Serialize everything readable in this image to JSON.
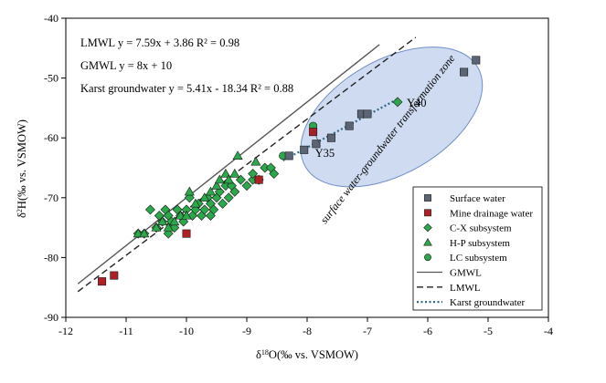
{
  "chart_data": {
    "type": "scatter",
    "xlabel_pre": "δ",
    "xlabel_sup": "18",
    "xlabel_post": "O(‰ vs. VSMOW)",
    "ylabel_pre": "δ",
    "ylabel_sup": "2",
    "ylabel_post": "H(‰ vs. VSMOW)",
    "xlim": [
      -12,
      -4
    ],
    "ylim": [
      -90,
      -40
    ],
    "xticks": [
      -12,
      -11,
      -10,
      -9,
      -8,
      -7,
      -6,
      -5,
      -4
    ],
    "yticks": [
      -90,
      -80,
      -70,
      -60,
      -50,
      -40
    ],
    "grid": false,
    "equations": [
      "LMWL y = 7.59x + 3.86  R² = 0.98",
      "GMWL y = 8x + 10",
      "Karst groundwater y = 5.41x - 18.34 R² = 0.88"
    ],
    "zone_label": "surface water-groundwater transformation zone",
    "point_labels": [
      {
        "text": "Y40",
        "x": -6.5,
        "y": -54
      },
      {
        "text": "Y35",
        "x": -7.9,
        "y": -58
      }
    ],
    "lines": [
      {
        "name": "GMWL",
        "slope": 8,
        "intercept": 10,
        "x_range": [
          -11.8,
          -6.8
        ],
        "style": "solid",
        "color": "#555555"
      },
      {
        "name": "LMWL",
        "slope": 7.59,
        "intercept": 3.86,
        "x_range": [
          -11.8,
          -6.2
        ],
        "style": "dashed",
        "color": "#222222"
      },
      {
        "name": "Karst groundwater",
        "slope": 5.41,
        "intercept": -18.34,
        "x_range": [
          -8.4,
          -6.5
        ],
        "style": "dotted",
        "color": "#2e6b86"
      }
    ],
    "ellipse": {
      "cx": -6.6,
      "cy": -56.5,
      "rx": 1.65,
      "ry": 9.5,
      "rotation": -30,
      "fill": "#c9d7ee",
      "stroke": "#6f8fc9"
    },
    "series": [
      {
        "name": "Surface water",
        "marker": "square",
        "color": "#5b6573",
        "points": [
          [
            -8.3,
            -63
          ],
          [
            -8.05,
            -62
          ],
          [
            -7.85,
            -61
          ],
          [
            -7.6,
            -60
          ],
          [
            -7.3,
            -58
          ],
          [
            -7.1,
            -56
          ],
          [
            -7.0,
            -56
          ],
          [
            -5.4,
            -49
          ],
          [
            -5.2,
            -47
          ]
        ]
      },
      {
        "name": "Mine drainage water",
        "marker": "square",
        "color": "#b01f24",
        "points": [
          [
            -11.4,
            -84
          ],
          [
            -11.2,
            -83
          ],
          [
            -10.0,
            -76
          ],
          [
            -8.8,
            -67
          ],
          [
            -7.9,
            -59
          ]
        ]
      },
      {
        "name": "C-X subsystem",
        "marker": "diamond",
        "color": "#2aa84a",
        "points": [
          [
            -10.8,
            -76
          ],
          [
            -10.7,
            -76
          ],
          [
            -10.6,
            -72
          ],
          [
            -10.5,
            -75
          ],
          [
            -10.4,
            -74
          ],
          [
            -10.35,
            -72
          ],
          [
            -10.3,
            -73
          ],
          [
            -10.25,
            -74
          ],
          [
            -10.2,
            -75
          ],
          [
            -10.15,
            -72
          ],
          [
            -10.1,
            -73
          ],
          [
            -10.05,
            -74
          ],
          [
            -10.0,
            -72
          ],
          [
            -9.95,
            -70
          ],
          [
            -9.9,
            -73
          ],
          [
            -9.85,
            -72
          ],
          [
            -9.8,
            -71
          ],
          [
            -9.75,
            -73
          ],
          [
            -9.7,
            -72
          ],
          [
            -9.65,
            -70
          ],
          [
            -9.6,
            -71
          ],
          [
            -9.55,
            -72
          ],
          [
            -9.5,
            -70
          ],
          [
            -9.45,
            -69
          ],
          [
            -9.4,
            -71
          ],
          [
            -9.35,
            -68
          ],
          [
            -9.3,
            -70
          ],
          [
            -9.25,
            -68
          ],
          [
            -9.2,
            -69
          ],
          [
            -9.1,
            -67
          ],
          [
            -9.0,
            -68
          ],
          [
            -8.9,
            -67
          ],
          [
            -8.8,
            -67
          ],
          [
            -8.7,
            -65
          ],
          [
            -8.6,
            -65
          ],
          [
            -8.55,
            -66
          ],
          [
            -8.9,
            -66
          ],
          [
            -9.6,
            -73
          ],
          [
            -10.3,
            -76
          ],
          [
            -10.45,
            -73
          ]
        ]
      },
      {
        "name": "H-P subsystem",
        "marker": "triangle",
        "color": "#2aa84a",
        "points": [
          [
            -10.8,
            -76
          ],
          [
            -10.7,
            -76
          ],
          [
            -10.5,
            -75
          ],
          [
            -10.4,
            -74
          ],
          [
            -10.3,
            -75
          ],
          [
            -10.2,
            -74
          ],
          [
            -10.1,
            -73
          ],
          [
            -10.0,
            -73
          ],
          [
            -9.95,
            -69
          ],
          [
            -9.85,
            -71
          ],
          [
            -9.7,
            -70
          ],
          [
            -9.6,
            -69
          ],
          [
            -9.5,
            -68
          ],
          [
            -9.45,
            -67
          ],
          [
            -9.35,
            -66
          ],
          [
            -9.3,
            -67
          ],
          [
            -9.2,
            -66
          ],
          [
            -9.15,
            -63
          ],
          [
            -8.85,
            -64
          ]
        ]
      },
      {
        "name": "LC subsystem",
        "marker": "circle",
        "color": "#2aa84a",
        "points": [
          [
            -7.9,
            -58
          ],
          [
            -8.4,
            -63
          ]
        ]
      }
    ],
    "extra_points": [
      {
        "marker": "diamond",
        "color": "#2aa84a",
        "x": -6.5,
        "y": -54
      }
    ],
    "legend": {
      "placement": "bottom-right",
      "entries": [
        {
          "label": "Surface water",
          "kind": "square",
          "color": "#5b6573"
        },
        {
          "label": "Mine drainage water",
          "kind": "square",
          "color": "#b01f24"
        },
        {
          "label": "C-X subsystem",
          "kind": "diamond",
          "color": "#2aa84a"
        },
        {
          "label": "H-P subsystem",
          "kind": "triangle",
          "color": "#2aa84a"
        },
        {
          "label": "LC subsystem",
          "kind": "circle",
          "color": "#2aa84a"
        },
        {
          "label": "GMWL",
          "kind": "solid",
          "color": "#555555"
        },
        {
          "label": "LMWL",
          "kind": "dashed",
          "color": "#222222"
        },
        {
          "label": "Karst groundwater",
          "kind": "dotted",
          "color": "#2e6b86"
        }
      ]
    }
  }
}
